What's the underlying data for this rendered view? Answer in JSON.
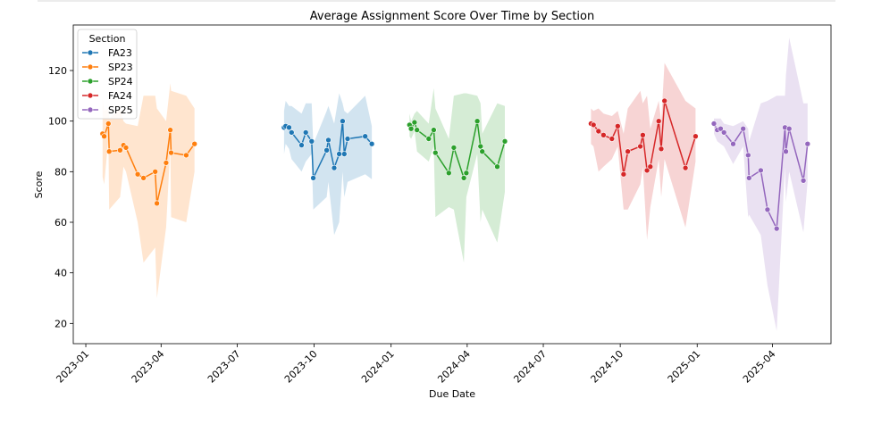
{
  "chart_data": {
    "type": "line",
    "title": "Average Assignment Score Over Time by Section",
    "xlabel": "Due Date",
    "ylabel": "Score",
    "xlim": [
      "2022-12-17",
      "2025-06-10"
    ],
    "ylim": [
      12,
      138
    ],
    "grid": false,
    "legend": {
      "title": "Section",
      "placement": "top-left"
    },
    "x_ticks": [
      "2023-01",
      "2023-04",
      "2023-07",
      "2023-10",
      "2024-01",
      "2024-04",
      "2024-07",
      "2024-10",
      "2025-01",
      "2025-04"
    ],
    "y_ticks": [
      20,
      40,
      60,
      80,
      100,
      120
    ],
    "series": [
      {
        "name": "FA23",
        "color": "#1f77b4",
        "points": [
          [
            "2023-08-26",
            97.5
          ],
          [
            "2023-08-28",
            98
          ],
          [
            "2023-09-01",
            97.5
          ],
          [
            "2023-09-04",
            95.5
          ],
          [
            "2023-09-16",
            90.5
          ],
          [
            "2023-09-21",
            95.5
          ],
          [
            "2023-09-28",
            92
          ],
          [
            "2023-09-30",
            77.5
          ],
          [
            "2023-10-16",
            88.5
          ],
          [
            "2023-10-18",
            92.5
          ],
          [
            "2023-10-25",
            81.5
          ],
          [
            "2023-10-31",
            87
          ],
          [
            "2023-11-04",
            100
          ],
          [
            "2023-11-06",
            87
          ],
          [
            "2023-11-10",
            93
          ],
          [
            "2023-12-01",
            94
          ],
          [
            "2023-12-09",
            91
          ]
        ],
        "ci": [
          [
            87,
            104
          ],
          [
            91,
            108
          ],
          [
            89,
            106
          ],
          [
            85,
            106
          ],
          [
            80,
            103
          ],
          [
            84,
            107
          ],
          [
            87,
            107
          ],
          [
            65,
            91
          ],
          [
            70,
            104
          ],
          [
            76,
            106
          ],
          [
            55,
            99
          ],
          [
            60,
            111
          ],
          [
            80,
            107
          ],
          [
            70,
            104
          ],
          [
            76,
            103
          ],
          [
            79,
            110
          ],
          [
            77,
            98
          ]
        ]
      },
      {
        "name": "SP23",
        "color": "#ff7f0e",
        "points": [
          [
            "2023-01-21",
            95
          ],
          [
            "2023-01-23",
            94
          ],
          [
            "2023-01-28",
            99
          ],
          [
            "2023-01-29",
            88
          ],
          [
            "2023-02-11",
            88.5
          ],
          [
            "2023-02-15",
            90.5
          ],
          [
            "2023-02-18",
            89.5
          ],
          [
            "2023-03-04",
            79
          ],
          [
            "2023-03-11",
            77.5
          ],
          [
            "2023-03-25",
            80
          ],
          [
            "2023-03-27",
            67.5
          ],
          [
            "2023-04-07",
            83.5
          ],
          [
            "2023-04-12",
            96.5
          ],
          [
            "2023-04-13",
            87.5
          ],
          [
            "2023-05-01",
            86.5
          ],
          [
            "2023-05-11",
            91
          ]
        ],
        "ci": [
          [
            78,
            109
          ],
          [
            75,
            104
          ],
          [
            93,
            105
          ],
          [
            65,
            101
          ],
          [
            70,
            105
          ],
          [
            82,
            100
          ],
          [
            80,
            99
          ],
          [
            60,
            98
          ],
          [
            44,
            110
          ],
          [
            50,
            110
          ],
          [
            30,
            105
          ],
          [
            58,
            100
          ],
          [
            90,
            115
          ],
          [
            62,
            112
          ],
          [
            60,
            110
          ],
          [
            80,
            105
          ]
        ]
      },
      {
        "name": "SP24",
        "color": "#2ca02c",
        "points": [
          [
            "2024-01-23",
            98.5
          ],
          [
            "2024-01-25",
            97
          ],
          [
            "2024-01-29",
            99.5
          ],
          [
            "2024-02-01",
            96.5
          ],
          [
            "2024-02-15",
            93
          ],
          [
            "2024-02-21",
            96.5
          ],
          [
            "2024-02-23",
            87.5
          ],
          [
            "2024-03-10",
            79.5
          ],
          [
            "2024-03-16",
            89.5
          ],
          [
            "2024-03-28",
            77.5
          ],
          [
            "2024-03-31",
            79.5
          ],
          [
            "2024-04-13",
            100
          ],
          [
            "2024-04-17",
            90
          ],
          [
            "2024-04-19",
            88
          ],
          [
            "2024-05-07",
            82
          ],
          [
            "2024-05-16",
            92
          ]
        ],
        "ci": [
          [
            94,
            103
          ],
          [
            93,
            100
          ],
          [
            96,
            103
          ],
          [
            88,
            104
          ],
          [
            84,
            99
          ],
          [
            90,
            113
          ],
          [
            62,
            105
          ],
          [
            66,
            93
          ],
          [
            65,
            110
          ],
          [
            44,
            111
          ],
          [
            70,
            111
          ],
          [
            87,
            110
          ],
          [
            60,
            107
          ],
          [
            65,
            95
          ],
          [
            52,
            107
          ],
          [
            72,
            106
          ]
        ]
      },
      {
        "name": "FA24",
        "color": "#d62728",
        "points": [
          [
            "2024-08-27",
            99
          ],
          [
            "2024-08-30",
            98.5
          ],
          [
            "2024-09-05",
            96
          ],
          [
            "2024-09-11",
            94.5
          ],
          [
            "2024-09-21",
            93
          ],
          [
            "2024-09-28",
            98
          ],
          [
            "2024-10-05",
            79
          ],
          [
            "2024-10-10",
            88
          ],
          [
            "2024-10-25",
            90
          ],
          [
            "2024-10-28",
            94.5
          ],
          [
            "2024-11-02",
            80.5
          ],
          [
            "2024-11-06",
            82
          ],
          [
            "2024-11-16",
            100
          ],
          [
            "2024-11-19",
            89
          ],
          [
            "2024-11-23",
            108
          ],
          [
            "2024-12-18",
            81.5
          ],
          [
            "2024-12-30",
            94
          ]
        ],
        "ci": [
          [
            91,
            105
          ],
          [
            90,
            104
          ],
          [
            80,
            105
          ],
          [
            82,
            103
          ],
          [
            85,
            102
          ],
          [
            90,
            104
          ],
          [
            65,
            95
          ],
          [
            65,
            105
          ],
          [
            75,
            112
          ],
          [
            82,
            107
          ],
          [
            53,
            110
          ],
          [
            66,
            97
          ],
          [
            85,
            108
          ],
          [
            70,
            100
          ],
          [
            85,
            123
          ],
          [
            58,
            108
          ],
          [
            84,
            105
          ]
        ]
      },
      {
        "name": "SP25",
        "color": "#9467bd",
        "points": [
          [
            "2025-01-21",
            99
          ],
          [
            "2025-01-25",
            96.5
          ],
          [
            "2025-01-29",
            97
          ],
          [
            "2025-02-02",
            95.5
          ],
          [
            "2025-02-13",
            91
          ],
          [
            "2025-02-25",
            97
          ],
          [
            "2025-03-03",
            86.5
          ],
          [
            "2025-03-04",
            77.5
          ],
          [
            "2025-03-18",
            80.5
          ],
          [
            "2025-03-26",
            65
          ],
          [
            "2025-04-06",
            57.5
          ],
          [
            "2025-04-16",
            97.5
          ],
          [
            "2025-04-17",
            88
          ],
          [
            "2025-04-21",
            97
          ],
          [
            "2025-05-08",
            76.5
          ],
          [
            "2025-05-13",
            91
          ]
        ],
        "ci": [
          [
            95,
            101
          ],
          [
            92,
            101
          ],
          [
            91,
            101
          ],
          [
            90,
            99
          ],
          [
            83,
            98
          ],
          [
            90,
            100
          ],
          [
            62,
            97
          ],
          [
            63,
            92
          ],
          [
            55,
            107
          ],
          [
            35,
            108
          ],
          [
            17,
            110
          ],
          [
            82,
            110
          ],
          [
            68,
            118
          ],
          [
            80,
            133
          ],
          [
            56,
            107
          ],
          [
            76,
            107
          ]
        ]
      }
    ]
  }
}
